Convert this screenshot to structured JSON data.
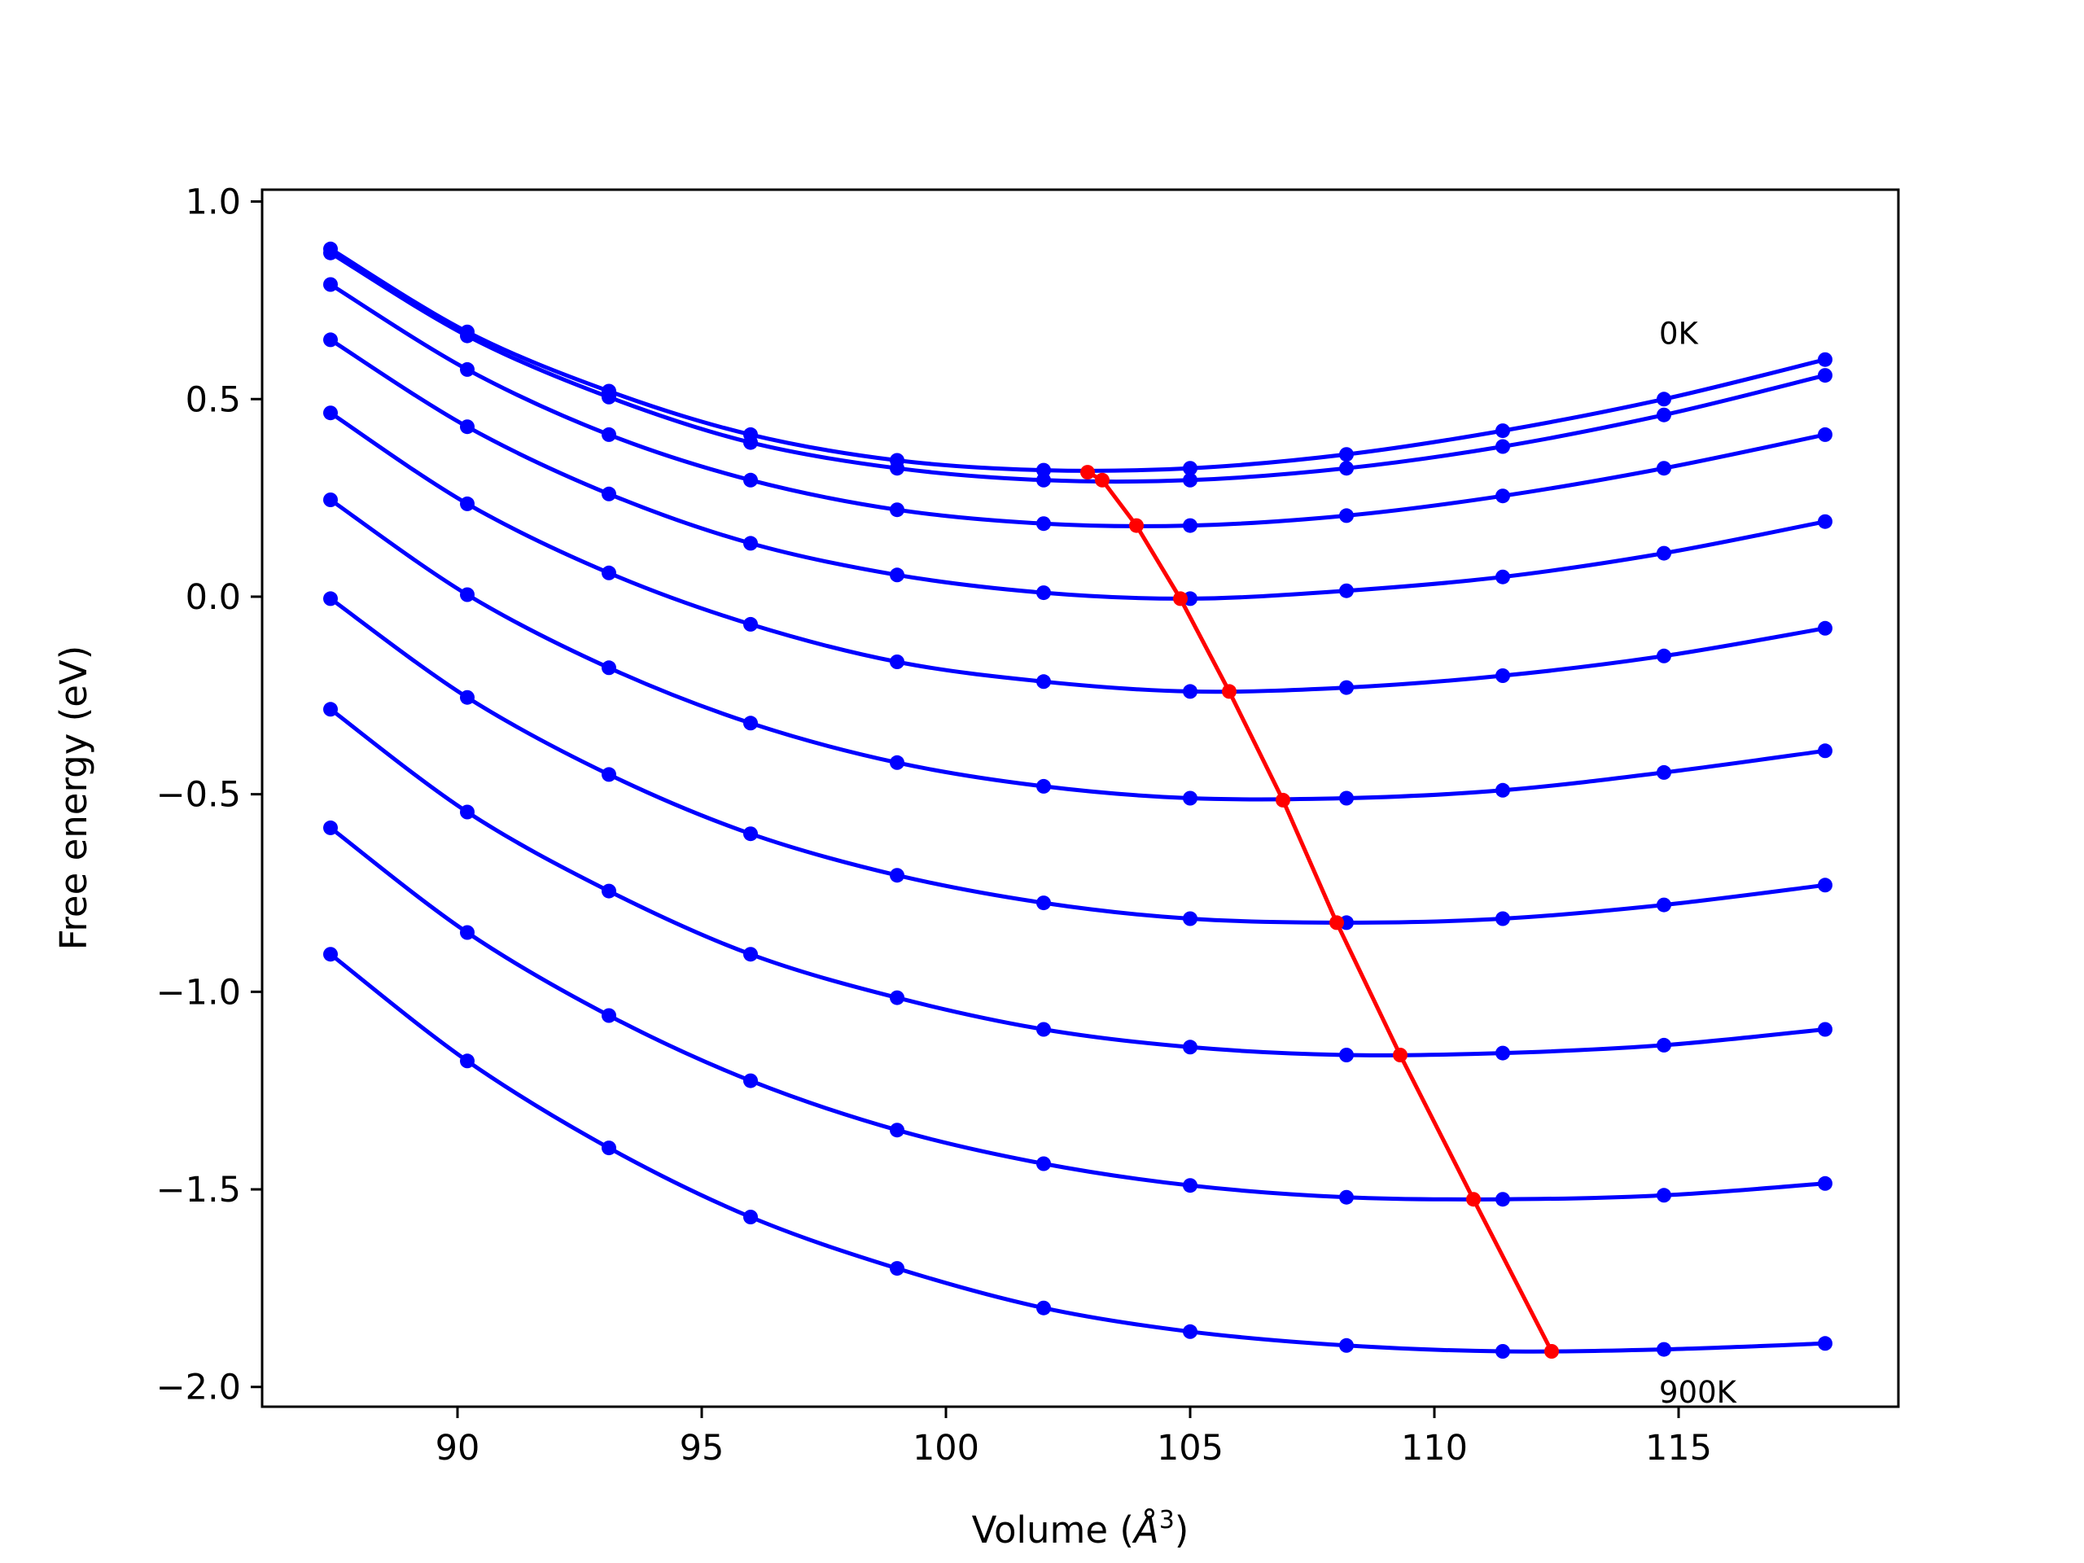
{
  "chart_data": {
    "type": "line",
    "title": "",
    "xlabel": "Volume (Å³)",
    "xlabel_parts": {
      "prefix": "Volume (",
      "unit": "Å",
      "exponent": "3",
      "suffix": ")"
    },
    "ylabel": "Free energy (eV)",
    "xlim": [
      86.0,
      119.5
    ],
    "ylim": [
      -2.05,
      1.03
    ],
    "xticks": [
      90,
      95,
      100,
      105,
      110,
      115
    ],
    "xtick_labels": [
      "90",
      "95",
      "100",
      "105",
      "110",
      "115"
    ],
    "yticks": [
      1.0,
      0.5,
      0.0,
      -0.5,
      -1.0,
      -1.5,
      -2.0
    ],
    "ytick_labels": [
      "1.0",
      "0.5",
      "0.0",
      "−0.5",
      "−1.0",
      "−1.5",
      "−2.0"
    ],
    "grid": false,
    "colors": {
      "curves": "#0000ff",
      "minima": "#ff0000"
    },
    "annotations": [
      {
        "text": "0K",
        "x": 114.6,
        "y": 0.64
      },
      {
        "text": "900K",
        "x": 114.6,
        "y": -2.04
      }
    ],
    "x": [
      87.4,
      90.2,
      93.1,
      96.0,
      99.0,
      102.0,
      105.0,
      108.2,
      111.4,
      114.7,
      118.0
    ],
    "series": [
      {
        "values": [
          0.88,
          0.67,
          0.52,
          0.41,
          0.345,
          0.32,
          0.325,
          0.36,
          0.42,
          0.5,
          0.6
        ]
      },
      {
        "values": [
          0.87,
          0.66,
          0.505,
          0.39,
          0.325,
          0.295,
          0.295,
          0.325,
          0.38,
          0.46,
          0.56
        ]
      },
      {
        "values": [
          0.79,
          0.575,
          0.41,
          0.295,
          0.22,
          0.185,
          0.18,
          0.205,
          0.255,
          0.325,
          0.41
        ]
      },
      {
        "values": [
          0.65,
          0.43,
          0.26,
          0.135,
          0.055,
          0.01,
          -0.005,
          0.015,
          0.05,
          0.11,
          0.19
        ]
      },
      {
        "values": [
          0.465,
          0.235,
          0.06,
          -0.07,
          -0.165,
          -0.215,
          -0.24,
          -0.23,
          -0.2,
          -0.15,
          -0.08
        ]
      },
      {
        "values": [
          0.245,
          0.005,
          -0.18,
          -0.32,
          -0.42,
          -0.48,
          -0.51,
          -0.51,
          -0.49,
          -0.445,
          -0.39
        ]
      },
      {
        "values": [
          -0.005,
          -0.255,
          -0.45,
          -0.6,
          -0.705,
          -0.775,
          -0.815,
          -0.825,
          -0.815,
          -0.78,
          -0.73
        ]
      },
      {
        "values": [
          -0.285,
          -0.545,
          -0.745,
          -0.905,
          -1.015,
          -1.095,
          -1.14,
          -1.16,
          -1.155,
          -1.135,
          -1.095
        ]
      },
      {
        "values": [
          -0.585,
          -0.85,
          -1.06,
          -1.225,
          -1.35,
          -1.435,
          -1.49,
          -1.52,
          -1.525,
          -1.515,
          -1.485
        ]
      },
      {
        "values": [
          -0.905,
          -1.175,
          -1.395,
          -1.57,
          -1.7,
          -1.8,
          -1.86,
          -1.895,
          -1.91,
          -1.905,
          -1.89
        ]
      }
    ],
    "minima": {
      "x": [
        102.9,
        103.2,
        103.9,
        104.8,
        105.8,
        106.9,
        108.0,
        109.3,
        110.8,
        112.4
      ],
      "y": [
        0.315,
        0.295,
        0.18,
        -0.005,
        -0.24,
        -0.515,
        -0.825,
        -1.16,
        -1.525,
        -1.91
      ]
    }
  }
}
